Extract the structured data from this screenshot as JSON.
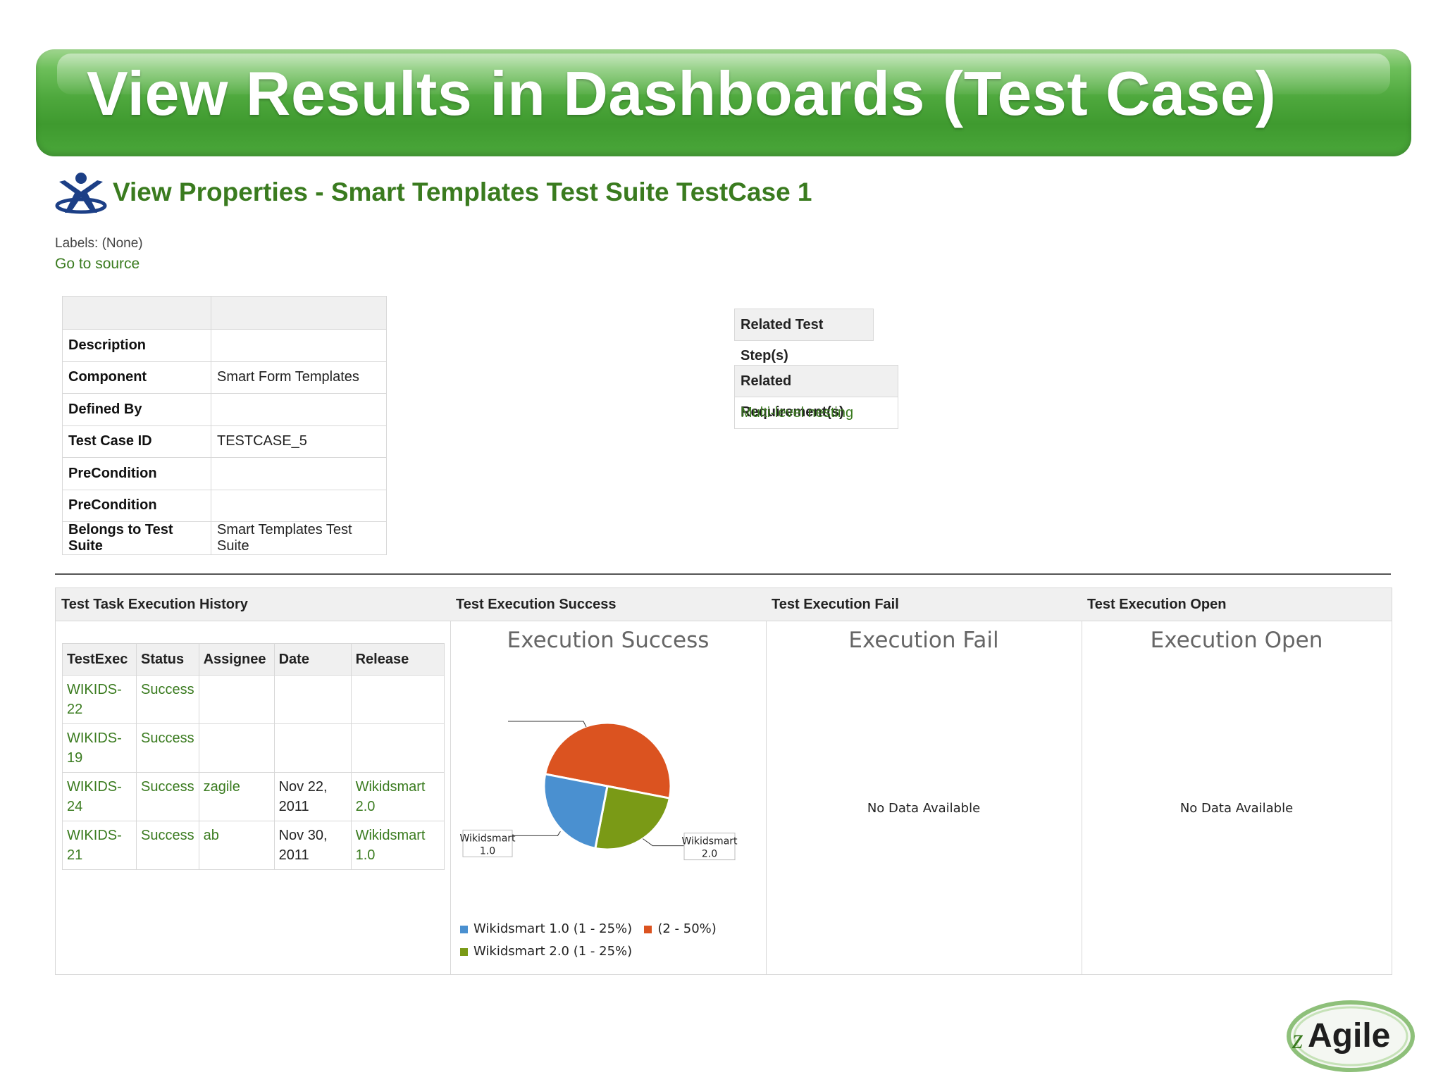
{
  "slide": {
    "title": "View Results in Dashboards (Test Case)"
  },
  "header": {
    "title": "View Properties - Smart Templates Test Suite TestCase 1",
    "labels_prefix": "Labels:",
    "labels_value": "(None)",
    "go_to_source": "Go to source"
  },
  "properties": {
    "rows": [
      {
        "key": "Description",
        "value": ""
      },
      {
        "key": "Component",
        "value": "Smart Form Templates"
      },
      {
        "key": "Defined By",
        "value": ""
      },
      {
        "key": "Test Case ID",
        "value": "TESTCASE_5"
      },
      {
        "key": "PreCondition",
        "value": ""
      },
      {
        "key": "PreCondition",
        "value": ""
      },
      {
        "key": "Belongs to Test Suite",
        "value": "Smart Templates Test Suite"
      }
    ]
  },
  "related": {
    "test_steps_header": "Related Test Step(s)",
    "requirements_header": "Related Requirement(s)",
    "requirements": [
      "Multi-level nesting"
    ]
  },
  "dashboard": {
    "history": {
      "header": "Test Task Execution History",
      "columns": [
        "TestExec",
        "Status",
        "Assignee",
        "Date",
        "Release"
      ],
      "rows": [
        {
          "exec": "WIKIDS-22",
          "status": "Success",
          "assignee": "",
          "date_l1": "",
          "date_l2": "",
          "rel_l1": "",
          "rel_l2": ""
        },
        {
          "exec": "WIKIDS-19",
          "status": "Success",
          "assignee": "",
          "date_l1": "",
          "date_l2": "",
          "rel_l1": "",
          "rel_l2": ""
        },
        {
          "exec": "WIKIDS-24",
          "status": "Success",
          "assignee": "zagile",
          "date_l1": "Nov 22,",
          "date_l2": "2011",
          "rel_l1": "Wikidsmart",
          "rel_l2": "2.0"
        },
        {
          "exec": "WIKIDS-21",
          "status": "Success",
          "assignee": "ab",
          "date_l1": "Nov 30,",
          "date_l2": "2011",
          "rel_l1": "Wikidsmart",
          "rel_l2": "1.0"
        }
      ]
    },
    "success": {
      "header": "Test Execution Success",
      "chart_title": "Execution Success"
    },
    "fail": {
      "header": "Test Execution Fail",
      "chart_title": "Execution Fail",
      "no_data": "No Data Available"
    },
    "open": {
      "header": "Test Execution Open",
      "chart_title": "Execution Open",
      "no_data": "No Data Available"
    }
  },
  "chart_data": {
    "type": "pie",
    "title": "Execution Success",
    "slices": [
      {
        "label": "Wikidsmart 1.0",
        "legend": "Wikidsmart 1.0 (1 - 25%)",
        "count": 1,
        "percent": 25,
        "color": "#4a90d0",
        "callout": [
          "Wikidsmart",
          "1.0"
        ]
      },
      {
        "label": "",
        "legend": "(2 - 50%)",
        "count": 2,
        "percent": 50,
        "color": "#db5320",
        "callout": []
      },
      {
        "label": "Wikidsmart 2.0",
        "legend": "Wikidsmart 2.0 (1 - 25%)",
        "count": 1,
        "percent": 25,
        "color": "#7a9a16",
        "callout": [
          "Wikidsmart",
          "2.0"
        ]
      }
    ]
  },
  "branding": {
    "logo_text": "Agile",
    "logo_prefix": "z"
  },
  "colors": {
    "banner": "#4ea83d",
    "link": "#3a7b1f",
    "header_bg": "#f0f0f0"
  }
}
